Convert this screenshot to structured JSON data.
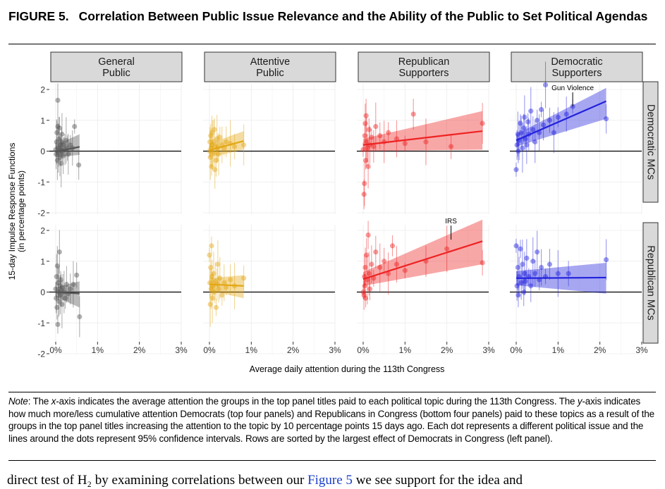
{
  "figure": {
    "label": "FIGURE 5.",
    "title": "Correlation Between Public Issue Relevance and the Ability of the Public to Set Political Agendas"
  },
  "chart_data": {
    "type": "scatter",
    "layout": "facet-grid",
    "xlabel": "Average daily attention during the 113th Congress",
    "ylabel_lines": [
      "15-day Impulse Response Functions",
      "(in percentage points)"
    ],
    "x_ticks": [
      "0%",
      "1%",
      "2%",
      "3%"
    ],
    "xlim": [
      0,
      3
    ],
    "ylim": [
      -2,
      2
    ],
    "y_ticks": [
      2,
      1,
      0,
      -1,
      -2
    ],
    "y_tick_labels": [
      "2",
      "1",
      "0",
      "-1",
      "-2"
    ],
    "grid": true,
    "columns": [
      {
        "lines": [
          "General",
          "Public"
        ],
        "color": "#555555"
      },
      {
        "lines": [
          "Attentive",
          "Public"
        ],
        "color": "#e3a715"
      },
      {
        "lines": [
          "Republican",
          "Supporters"
        ],
        "color": "#ee2222"
      },
      {
        "lines": [
          "Democratic",
          "Supporters"
        ],
        "color": "#2222dd"
      }
    ],
    "rows": [
      {
        "label": "Democratic MCs"
      },
      {
        "label": "Republican MCs"
      }
    ],
    "panels": [
      {
        "row": 0,
        "col": 0,
        "fit": {
          "x": [
            0.0,
            0.57
          ],
          "y": [
            -0.02,
            0.14
          ],
          "lo_start": -0.2,
          "hi_start": 0.2,
          "lo_end": -0.12,
          "hi_end": 0.55
        },
        "points": [
          [
            0.0,
            0.05
          ],
          [
            0.01,
            -0.1
          ],
          [
            0.02,
            0.3
          ],
          [
            0.03,
            0.6
          ],
          [
            0.04,
            -0.3
          ],
          [
            0.05,
            0.8
          ],
          [
            0.05,
            1.65
          ],
          [
            0.06,
            0.1
          ],
          [
            0.07,
            -0.05
          ],
          [
            0.08,
            0.4
          ],
          [
            0.09,
            0.75
          ],
          [
            0.1,
            -0.2
          ],
          [
            0.11,
            0.2
          ],
          [
            0.12,
            0.05
          ],
          [
            0.13,
            -0.4
          ],
          [
            0.14,
            0.3
          ],
          [
            0.15,
            0.55
          ],
          [
            0.16,
            0.0
          ],
          [
            0.18,
            -0.15
          ],
          [
            0.2,
            0.2
          ],
          [
            0.22,
            0.05
          ],
          [
            0.25,
            0.35
          ],
          [
            0.28,
            0.1
          ],
          [
            0.3,
            -0.1
          ],
          [
            0.35,
            0.2
          ],
          [
            0.4,
            0.1
          ],
          [
            0.45,
            0.8
          ],
          [
            0.55,
            -0.45
          ]
        ]
      },
      {
        "row": 0,
        "col": 1,
        "fit": {
          "x": [
            0.0,
            0.82
          ],
          "y": [
            0.03,
            0.33
          ],
          "lo_start": -0.2,
          "hi_start": 0.25,
          "lo_end": 0.05,
          "hi_end": 0.65
        },
        "points": [
          [
            0.0,
            0.0
          ],
          [
            0.01,
            0.3
          ],
          [
            0.02,
            -0.2
          ],
          [
            0.03,
            0.5
          ],
          [
            0.04,
            0.1
          ],
          [
            0.05,
            -0.5
          ],
          [
            0.06,
            0.6
          ],
          [
            0.07,
            0.2
          ],
          [
            0.08,
            -0.05
          ],
          [
            0.1,
            0.3
          ],
          [
            0.12,
            0.7
          ],
          [
            0.13,
            -0.6
          ],
          [
            0.15,
            0.15
          ],
          [
            0.16,
            -0.3
          ],
          [
            0.18,
            0.4
          ],
          [
            0.2,
            0.1
          ],
          [
            0.22,
            -0.1
          ],
          [
            0.25,
            0.45
          ],
          [
            0.3,
            0.2
          ],
          [
            0.35,
            0.1
          ],
          [
            0.4,
            0.3
          ],
          [
            0.5,
            0.25
          ],
          [
            0.6,
            0.15
          ],
          [
            0.82,
            0.2
          ]
        ]
      },
      {
        "row": 0,
        "col": 2,
        "fit": {
          "x": [
            0.0,
            2.85
          ],
          "y": [
            0.2,
            0.65
          ],
          "lo_start": 0.0,
          "hi_start": 0.4,
          "lo_end": 0.05,
          "hi_end": 1.3
        },
        "points": [
          [
            0.0,
            0.05
          ],
          [
            0.02,
            -1.4
          ],
          [
            0.03,
            -1.05
          ],
          [
            0.04,
            0.5
          ],
          [
            0.05,
            0.9
          ],
          [
            0.06,
            -0.3
          ],
          [
            0.07,
            1.15
          ],
          [
            0.08,
            0.3
          ],
          [
            0.1,
            0.1
          ],
          [
            0.12,
            -0.5
          ],
          [
            0.14,
            0.7
          ],
          [
            0.16,
            0.2
          ],
          [
            0.2,
            0.45
          ],
          [
            0.25,
            0.15
          ],
          [
            0.3,
            0.8
          ],
          [
            0.4,
            0.5
          ],
          [
            0.5,
            0.3
          ],
          [
            0.6,
            0.6
          ],
          [
            0.8,
            0.4
          ],
          [
            1.0,
            0.25
          ],
          [
            1.2,
            1.2
          ],
          [
            1.5,
            0.3
          ],
          [
            2.1,
            0.15
          ],
          [
            2.85,
            0.9
          ]
        ]
      },
      {
        "row": 0,
        "col": 3,
        "fit": {
          "x": [
            0.0,
            2.15
          ],
          "y": [
            0.35,
            1.62
          ],
          "lo_start": 0.15,
          "hi_start": 0.55,
          "lo_end": 1.05,
          "hi_end": 2.05
        },
        "points": [
          [
            0.0,
            -0.6
          ],
          [
            0.02,
            0.2
          ],
          [
            0.04,
            0.55
          ],
          [
            0.05,
            0.0
          ],
          [
            0.07,
            0.35
          ],
          [
            0.1,
            0.9
          ],
          [
            0.12,
            0.6
          ],
          [
            0.15,
            0.1
          ],
          [
            0.18,
            0.75
          ],
          [
            0.2,
            1.1
          ],
          [
            0.22,
            0.4
          ],
          [
            0.25,
            0.2
          ],
          [
            0.28,
            0.95
          ],
          [
            0.3,
            0.55
          ],
          [
            0.35,
            1.3
          ],
          [
            0.4,
            0.7
          ],
          [
            0.45,
            0.3
          ],
          [
            0.5,
            1.0
          ],
          [
            0.55,
            0.6
          ],
          [
            0.6,
            1.35
          ],
          [
            0.65,
            0.85
          ],
          [
            0.7,
            2.15
          ],
          [
            0.8,
            1.0
          ],
          [
            0.9,
            0.6
          ],
          [
            1.0,
            1.1
          ],
          [
            1.2,
            1.2
          ],
          [
            1.35,
            1.45
          ],
          [
            2.15,
            1.05
          ]
        ]
      },
      {
        "row": 1,
        "col": 0,
        "fit": {
          "x": [
            0.0,
            0.57
          ],
          "y": [
            0.0,
            -0.05
          ],
          "lo_start": -0.15,
          "hi_start": 0.15,
          "lo_end": -0.5,
          "hi_end": 0.35
        },
        "points": [
          [
            0.0,
            0.1
          ],
          [
            0.01,
            -0.2
          ],
          [
            0.02,
            0.5
          ],
          [
            0.03,
            -0.5
          ],
          [
            0.04,
            0.85
          ],
          [
            0.05,
            -1.05
          ],
          [
            0.06,
            0.3
          ],
          [
            0.07,
            0.0
          ],
          [
            0.08,
            -0.3
          ],
          [
            0.09,
            1.3
          ],
          [
            0.1,
            0.2
          ],
          [
            0.11,
            -0.1
          ],
          [
            0.12,
            0.4
          ],
          [
            0.13,
            0.05
          ],
          [
            0.15,
            -0.4
          ],
          [
            0.17,
            0.15
          ],
          [
            0.2,
            0.0
          ],
          [
            0.23,
            -0.2
          ],
          [
            0.26,
            0.25
          ],
          [
            0.3,
            -0.05
          ],
          [
            0.35,
            0.1
          ],
          [
            0.42,
            0.25
          ],
          [
            0.5,
            0.55
          ],
          [
            0.57,
            -0.8
          ]
        ]
      },
      {
        "row": 1,
        "col": 1,
        "fit": {
          "x": [
            0.0,
            0.82
          ],
          "y": [
            0.25,
            0.2
          ],
          "lo_start": 0.05,
          "hi_start": 0.45,
          "lo_end": -0.2,
          "hi_end": 0.55
        },
        "points": [
          [
            0.0,
            1.2
          ],
          [
            0.01,
            0.3
          ],
          [
            0.02,
            -0.4
          ],
          [
            0.03,
            0.8
          ],
          [
            0.04,
            0.1
          ],
          [
            0.05,
            1.5
          ],
          [
            0.06,
            0.5
          ],
          [
            0.07,
            -0.2
          ],
          [
            0.08,
            0.2
          ],
          [
            0.1,
            0.6
          ],
          [
            0.12,
            0.0
          ],
          [
            0.14,
            0.35
          ],
          [
            0.16,
            -0.5
          ],
          [
            0.18,
            0.25
          ],
          [
            0.2,
            0.9
          ],
          [
            0.22,
            0.1
          ],
          [
            0.25,
            0.45
          ],
          [
            0.3,
            -0.1
          ],
          [
            0.35,
            0.3
          ],
          [
            0.4,
            0.15
          ],
          [
            0.5,
            0.4
          ],
          [
            0.6,
            0.2
          ],
          [
            0.82,
            0.45
          ]
        ]
      },
      {
        "row": 1,
        "col": 2,
        "fit": {
          "x": [
            0.0,
            2.85
          ],
          "y": [
            0.42,
            1.65
          ],
          "lo_start": 0.2,
          "hi_start": 0.65,
          "lo_end": 0.9,
          "hi_end": 2.35
        },
        "points": [
          [
            0.0,
            0.0
          ],
          [
            0.02,
            -0.1
          ],
          [
            0.03,
            0.5
          ],
          [
            0.04,
            0.2
          ],
          [
            0.05,
            0.8
          ],
          [
            0.06,
            -0.2
          ],
          [
            0.08,
            1.2
          ],
          [
            0.1,
            0.4
          ],
          [
            0.12,
            1.85
          ],
          [
            0.14,
            0.6
          ],
          [
            0.16,
            0.1
          ],
          [
            0.2,
            0.9
          ],
          [
            0.25,
            0.45
          ],
          [
            0.3,
            1.3
          ],
          [
            0.4,
            0.8
          ],
          [
            0.5,
            1.0
          ],
          [
            0.6,
            0.6
          ],
          [
            0.7,
            1.5
          ],
          [
            0.8,
            0.9
          ],
          [
            1.0,
            0.7
          ],
          [
            1.5,
            1.0
          ],
          [
            2.0,
            1.4
          ],
          [
            2.85,
            0.95
          ]
        ]
      },
      {
        "row": 1,
        "col": 3,
        "fit": {
          "x": [
            0.0,
            2.15
          ],
          "y": [
            0.45,
            0.47
          ],
          "lo_start": 0.22,
          "hi_start": 0.68,
          "lo_end": -0.05,
          "hi_end": 0.95
        },
        "points": [
          [
            0.0,
            1.5
          ],
          [
            0.02,
            0.2
          ],
          [
            0.04,
            0.8
          ],
          [
            0.05,
            -0.1
          ],
          [
            0.07,
            0.5
          ],
          [
            0.1,
            1.4
          ],
          [
            0.12,
            0.3
          ],
          [
            0.15,
            0.9
          ],
          [
            0.18,
            0.0
          ],
          [
            0.2,
            0.6
          ],
          [
            0.22,
            0.35
          ],
          [
            0.25,
            1.1
          ],
          [
            0.3,
            0.5
          ],
          [
            0.35,
            0.2
          ],
          [
            0.4,
            1.0
          ],
          [
            0.45,
            0.6
          ],
          [
            0.5,
            1.3
          ],
          [
            0.55,
            0.4
          ],
          [
            0.6,
            0.8
          ],
          [
            0.7,
            0.5
          ],
          [
            0.8,
            0.9
          ],
          [
            1.0,
            0.6
          ],
          [
            1.25,
            0.6
          ],
          [
            2.15,
            1.05
          ]
        ]
      }
    ],
    "annotations": [
      {
        "row": 0,
        "col": 3,
        "text": "Gun Violence",
        "x": 1.35,
        "y": 1.45
      },
      {
        "row": 1,
        "col": 2,
        "text": "IRS",
        "x": 2.1,
        "y": 1.7
      }
    ]
  },
  "note": {
    "lead": "Note",
    "parts": [
      {
        "t": ": The ",
        "i": false
      },
      {
        "t": "x",
        "i": true
      },
      {
        "t": "-axis indicates the average attention the groups in the top panel titles paid to each political topic during the 113th Congress. The ",
        "i": false
      },
      {
        "t": "y",
        "i": true
      },
      {
        "t": "-axis indicates how much more/less cumulative attention Democrats (top four panels) and Republicans in Congress (bottom four panels) paid to these topics as a result of the groups in the top panel titles increasing the attention to the topic by 10 percentage points 15 days ago. Each dot represents a different political issue and the lines around the dots represent 95% confidence intervals. Rows are sorted by the largest effect of Democrats in Congress (left panel).",
        "i": false
      }
    ]
  },
  "bottom_line": {
    "before": "direct test of H₂ by examining correlations between our",
    "link": "Figure 5",
    "after": "we see support for the idea and"
  }
}
